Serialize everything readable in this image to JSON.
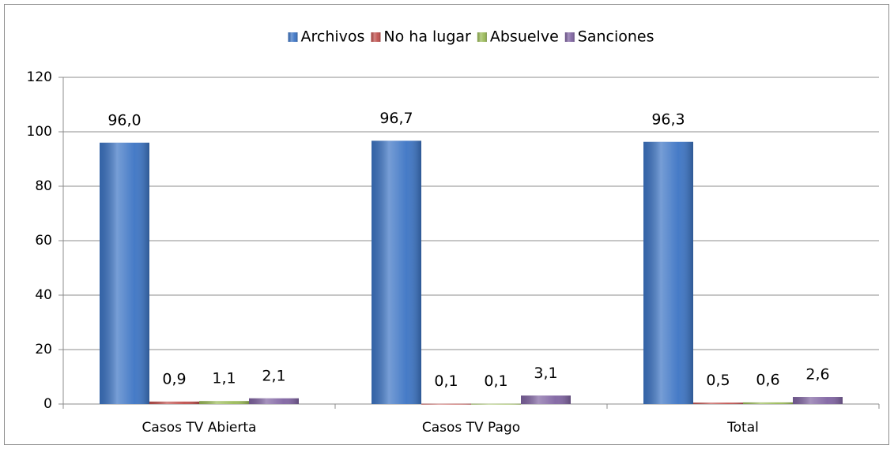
{
  "chart_data": {
    "type": "bar",
    "categories": [
      "Casos TV Abierta",
      "Casos TV Pago",
      "Total"
    ],
    "series": [
      {
        "name": "Archivos",
        "color": "#3c74c4",
        "values": [
          96.0,
          96.7,
          96.3
        ],
        "value_labels": [
          "96,0",
          "96,7",
          "96,3"
        ]
      },
      {
        "name": "No ha lugar",
        "color": "#c0504d",
        "values": [
          0.9,
          0.1,
          0.5
        ],
        "value_labels": [
          "0,9",
          "0,1",
          "0,5"
        ]
      },
      {
        "name": "Absuelve",
        "color": "#9bbb59",
        "values": [
          1.1,
          0.1,
          0.6
        ],
        "value_labels": [
          "1,1",
          "0,1",
          "0,6"
        ]
      },
      {
        "name": "Sanciones",
        "color": "#8064a2",
        "values": [
          2.1,
          3.1,
          2.6
        ],
        "value_labels": [
          "2,1",
          "3,1",
          "2,6"
        ]
      }
    ],
    "ylim": [
      0,
      120
    ],
    "yticks": [
      0,
      20,
      40,
      60,
      80,
      100,
      120
    ],
    "grid": true,
    "legend": "top"
  }
}
